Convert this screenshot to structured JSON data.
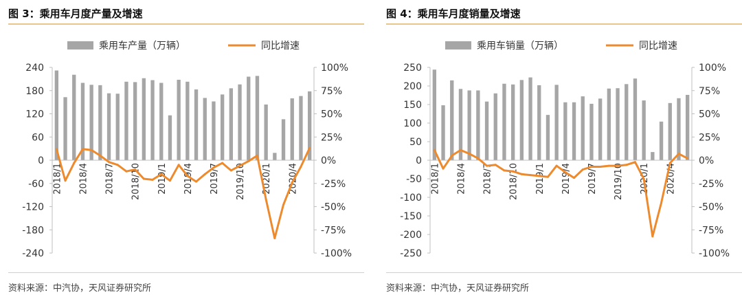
{
  "chart_data": [
    {
      "type": "bar",
      "title": "图 3：乘用车月度产量及增速",
      "source": "资料来源：中汽协，天风证券研究所",
      "series": [
        {
          "name": "乘用车产量（万辆）",
          "kind": "bar",
          "axis": "left",
          "values": [
            232,
            163,
            221,
            200,
            195,
            194,
            173,
            172,
            203,
            202,
            212,
            207,
            200,
            116,
            208,
            203,
            183,
            161,
            152,
            170,
            186,
            196,
            216,
            218,
            144,
            19,
            106,
            160,
            166,
            178
          ]
        },
        {
          "name": "同比增速",
          "kind": "line",
          "axis": "right",
          "values": [
            12,
            -22,
            -3,
            12,
            11,
            5,
            -2,
            -5,
            -12,
            -10,
            -20,
            -21,
            -15,
            -22,
            -5,
            -17,
            -23,
            -15,
            -8,
            -3,
            -11,
            -6,
            -1,
            5,
            -42,
            -84,
            -48,
            -24,
            -7,
            13
          ]
        }
      ],
      "x_tick_labels": [
        "2018/1",
        "2018/4",
        "2018/7",
        "2018/10",
        "2019/1",
        "2019/4",
        "2019/7",
        "2019/10",
        "2020/1",
        "2020/4"
      ],
      "x_tick_indices": [
        0,
        3,
        6,
        9,
        12,
        15,
        18,
        21,
        24,
        27
      ],
      "y_left": {
        "ticks": [
          240,
          180,
          120,
          60,
          0,
          -60,
          -120,
          -180,
          -240
        ],
        "range": [
          -240,
          240
        ]
      },
      "y_right": {
        "ticks": [
          "100%",
          "75%",
          "50%",
          "25%",
          "0%",
          "-25%",
          "-50%",
          "-75%",
          "-100%"
        ],
        "range": [
          -100,
          100
        ]
      },
      "colors": {
        "bar": "#a6a6a6",
        "line": "#ed8a2d"
      }
    },
    {
      "type": "bar",
      "title": "图 4：乘用车月度销量及增速",
      "source": "资料来源：中汽协，天风证券研究所",
      "series": [
        {
          "name": "乘用车销量（万辆）",
          "kind": "bar",
          "axis": "left",
          "values": [
            244,
            148,
            215,
            192,
            188,
            188,
            158,
            180,
            206,
            204,
            216,
            223,
            202,
            122,
            203,
            156,
            156,
            172,
            152,
            166,
            193,
            194,
            205,
            220,
            161,
            22,
            104,
            154,
            167,
            176
          ]
        },
        {
          "name": "同比增速",
          "kind": "line",
          "axis": "right",
          "values": [
            11,
            -9,
            5,
            11,
            7,
            2,
            -6,
            -5,
            -11,
            -12,
            -15,
            -16,
            -17,
            -18,
            -6,
            -13,
            -19,
            -10,
            -7,
            -7,
            -6,
            -6,
            -5,
            -2,
            -20,
            -82,
            -46,
            -3,
            7,
            2
          ]
        }
      ],
      "x_tick_labels": [
        "2018/1",
        "2018/4",
        "2018/7",
        "2018/10",
        "2019/1",
        "2019/4",
        "2019/7",
        "2019/10",
        "2020/1",
        "2020/4"
      ],
      "x_tick_indices": [
        0,
        3,
        6,
        9,
        12,
        15,
        18,
        21,
        24,
        27
      ],
      "y_left": {
        "ticks": [
          250,
          200,
          150,
          100,
          50,
          0,
          -50,
          -100,
          -150,
          -200,
          -250
        ],
        "range": [
          -250,
          250
        ]
      },
      "y_right": {
        "ticks": [
          "100%",
          "75%",
          "50%",
          "25%",
          "0%",
          "-25%",
          "-50%",
          "-75%",
          "-100%"
        ],
        "range": [
          -100,
          100
        ]
      },
      "colors": {
        "bar": "#a6a6a6",
        "line": "#ed8a2d"
      }
    }
  ]
}
